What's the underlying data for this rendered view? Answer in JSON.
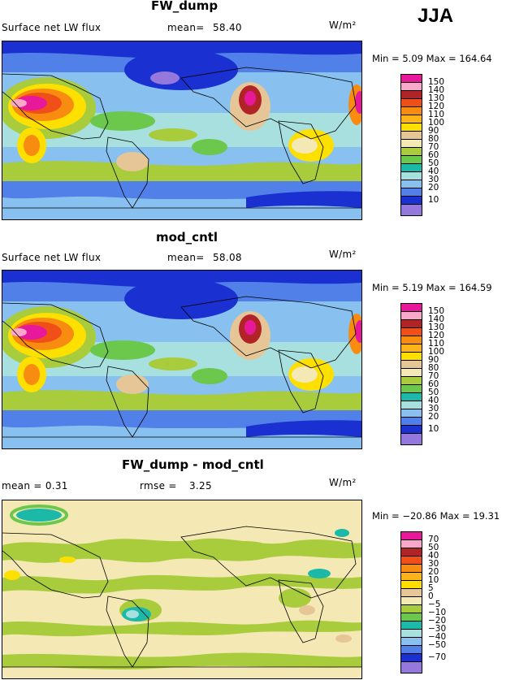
{
  "season": "JJA",
  "units": "W/m²",
  "panels": [
    {
      "title": "FW_dump",
      "left_label": "Surface net LW flux",
      "stat_label": "mean=",
      "stat_value": "58.40",
      "minmax": "Min =   5.09 Max = 164.64",
      "colorbar_labels": [
        "150",
        "140",
        "130",
        "120",
        "110",
        "100",
        "90",
        "80",
        "70",
        "60",
        "50",
        "40",
        "30",
        "20",
        "10"
      ]
    },
    {
      "title": "mod_cntl",
      "left_label": "Surface net LW flux",
      "stat_label": "mean=",
      "stat_value": "58.08",
      "minmax": "Min =   5.19 Max = 164.59",
      "colorbar_labels": [
        "150",
        "140",
        "130",
        "120",
        "110",
        "100",
        "90",
        "80",
        "70",
        "60",
        "50",
        "40",
        "30",
        "20",
        "10"
      ]
    },
    {
      "title": "FW_dump - mod_cntl",
      "left_label": "mean =   0.31",
      "stat_label": "rmse =",
      "stat_value": "3.25",
      "minmax": "Min = −20.86 Max =  19.31",
      "colorbar_labels": [
        "70",
        "50",
        "40",
        "30",
        "20",
        "10",
        "5",
        "0",
        "−5",
        "−10",
        "−20",
        "−30",
        "−40",
        "−50",
        "−70"
      ]
    }
  ],
  "colors": {
    "flux_scale": [
      "#e8189a",
      "#f8a8c8",
      "#b02428",
      "#f05018",
      "#f88c10",
      "#fcb418",
      "#fde000",
      "#e6c696",
      "#f4e8b4",
      "#a8cc3c",
      "#6cc84c",
      "#1cb8a8",
      "#a8e0e0",
      "#88c0f0",
      "#5080e8",
      "#1a30d0",
      "#9478dc"
    ],
    "diff_scale": [
      "#e8189a",
      "#f8a8c8",
      "#b02428",
      "#f05018",
      "#f88c10",
      "#fcb418",
      "#fde000",
      "#e6c696",
      "#f4e8b4",
      "#a8cc3c",
      "#6cc84c",
      "#1cb8a8",
      "#a8e0e0",
      "#88c0f0",
      "#5080e8",
      "#1a30d0",
      "#9478dc"
    ]
  },
  "chart_data": [
    {
      "type": "heatmap",
      "title": "FW_dump",
      "variable": "Surface net LW flux",
      "units": "W/m²",
      "season": "JJA",
      "mean": 58.4,
      "min": 5.09,
      "max": 164.64,
      "color_levels": [
        10,
        20,
        30,
        40,
        50,
        60,
        70,
        80,
        90,
        100,
        110,
        120,
        130,
        140,
        150
      ]
    },
    {
      "type": "heatmap",
      "title": "mod_cntl",
      "variable": "Surface net LW flux",
      "units": "W/m²",
      "season": "JJA",
      "mean": 58.08,
      "min": 5.19,
      "max": 164.59,
      "color_levels": [
        10,
        20,
        30,
        40,
        50,
        60,
        70,
        80,
        90,
        100,
        110,
        120,
        130,
        140,
        150
      ]
    },
    {
      "type": "heatmap",
      "title": "FW_dump - mod_cntl",
      "units": "W/m²",
      "season": "JJA",
      "mean": 0.31,
      "rmse": 3.25,
      "min": -20.86,
      "max": 19.31,
      "color_levels": [
        -70,
        -50,
        -40,
        -30,
        -20,
        -10,
        -5,
        0,
        5,
        10,
        20,
        30,
        40,
        50,
        70
      ]
    }
  ]
}
